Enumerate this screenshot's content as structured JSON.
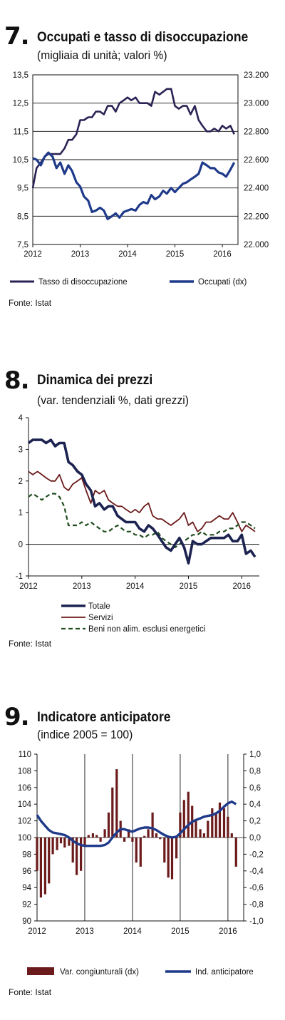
{
  "colors": {
    "navy": "#1f2f6e",
    "dark_navy": "#1c2350",
    "brown": "#6b1b1b",
    "dark_green": "#1f4d1f"
  },
  "panel7": {
    "number": "7.",
    "title": "Occupati e tasso di disoccupazione",
    "subtitle": "(migliaia di unità; valori %)",
    "source": "Fonte: Istat"
  },
  "panel8": {
    "number": "8.",
    "title": "Dinamica dei prezzi",
    "subtitle": "(var. tendenziali %, dati grezzi)",
    "source": "Fonte: Istat"
  },
  "panel9": {
    "number": "9.",
    "title": "Indicatore anticipatore",
    "subtitle": "(indice 2005 = 100)",
    "source": "Fonte: Istat"
  },
  "chart_data": [
    {
      "type": "line",
      "x_ticks": [
        "2012",
        "2013",
        "2014",
        "2015",
        "2016"
      ],
      "x_range": [
        2012,
        2016.33
      ],
      "y_left": {
        "ticks": [
          "13,5",
          "12,5",
          "11,5",
          "10,5",
          "9,5",
          "8,5",
          "7,5"
        ],
        "range": [
          7.5,
          13.5
        ]
      },
      "y_right": {
        "ticks": [
          "23.200",
          "23.000",
          "22.800",
          "22.600",
          "22.400",
          "22.200",
          "22.000"
        ],
        "range": [
          22000,
          23200
        ]
      },
      "grid": true,
      "legend": "bottom",
      "series": [
        {
          "name": "Tasso di disoccupazione",
          "axis": "left",
          "color": "#2b2354",
          "t": [
            2012.0,
            2012.08,
            2012.17,
            2012.25,
            2012.33,
            2012.42,
            2012.5,
            2012.58,
            2012.67,
            2012.75,
            2012.83,
            2012.92,
            2013.0,
            2013.08,
            2013.17,
            2013.25,
            2013.33,
            2013.42,
            2013.5,
            2013.58,
            2013.67,
            2013.75,
            2013.83,
            2013.92,
            2014.0,
            2014.08,
            2014.17,
            2014.25,
            2014.33,
            2014.42,
            2014.5,
            2014.58,
            2014.67,
            2014.75,
            2014.83,
            2014.92,
            2015.0,
            2015.08,
            2015.17,
            2015.25,
            2015.33,
            2015.42,
            2015.5,
            2015.58,
            2015.67,
            2015.75,
            2015.83,
            2015.92,
            2016.0,
            2016.08,
            2016.17,
            2016.25
          ],
          "values": [
            9.5,
            10.2,
            10.4,
            10.6,
            10.7,
            10.7,
            10.7,
            10.7,
            10.9,
            11.2,
            11.2,
            11.4,
            11.9,
            11.9,
            12.0,
            12.0,
            12.2,
            12.2,
            12.1,
            12.4,
            12.4,
            12.2,
            12.5,
            12.6,
            12.7,
            12.6,
            12.7,
            12.5,
            12.5,
            12.5,
            12.4,
            12.9,
            12.8,
            12.9,
            13.0,
            13.0,
            12.4,
            12.3,
            12.4,
            12.4,
            12.1,
            12.4,
            11.9,
            11.7,
            11.5,
            11.5,
            11.6,
            11.5,
            11.7,
            11.6,
            11.7,
            11.4
          ]
        },
        {
          "name": "Occupati (dx)",
          "axis": "right",
          "color": "#1f3a8a",
          "t": [
            2012.0,
            2012.08,
            2012.17,
            2012.25,
            2012.33,
            2012.42,
            2012.5,
            2012.58,
            2012.67,
            2012.75,
            2012.83,
            2012.92,
            2013.0,
            2013.08,
            2013.17,
            2013.25,
            2013.33,
            2013.42,
            2013.5,
            2013.58,
            2013.67,
            2013.75,
            2013.83,
            2013.92,
            2014.0,
            2014.08,
            2014.17,
            2014.25,
            2014.33,
            2014.42,
            2014.5,
            2014.58,
            2014.67,
            2014.75,
            2014.83,
            2014.92,
            2015.0,
            2015.08,
            2015.17,
            2015.25,
            2015.33,
            2015.42,
            2015.5,
            2015.58,
            2015.67,
            2015.75,
            2015.83,
            2015.92,
            2016.0,
            2016.08,
            2016.17,
            2016.25
          ],
          "values": [
            22610,
            22600,
            22560,
            22620,
            22650,
            22620,
            22540,
            22580,
            22500,
            22560,
            22520,
            22440,
            22410,
            22340,
            22310,
            22230,
            22240,
            22260,
            22240,
            22180,
            22200,
            22220,
            22190,
            22230,
            22240,
            22250,
            22240,
            22280,
            22300,
            22290,
            22350,
            22320,
            22340,
            22380,
            22360,
            22400,
            22370,
            22400,
            22430,
            22440,
            22460,
            22480,
            22500,
            22580,
            22560,
            22540,
            22540,
            22510,
            22500,
            22480,
            22530,
            22580
          ]
        }
      ]
    },
    {
      "type": "line",
      "x_ticks": [
        "2012",
        "2013",
        "2014",
        "2015",
        "2016"
      ],
      "x_range": [
        2012,
        2016.33
      ],
      "y_left": {
        "ticks": [
          "4",
          "3",
          "2",
          "1",
          "0",
          "-1"
        ],
        "range": [
          -1,
          4
        ]
      },
      "grid": false,
      "legend": "bottom",
      "series": [
        {
          "name": "Totale",
          "color": "#1c2350",
          "style": "solid-thick",
          "t": [
            2012.0,
            2012.08,
            2012.17,
            2012.25,
            2012.33,
            2012.42,
            2012.5,
            2012.58,
            2012.67,
            2012.75,
            2012.83,
            2012.92,
            2013.0,
            2013.08,
            2013.17,
            2013.25,
            2013.33,
            2013.42,
            2013.5,
            2013.58,
            2013.67,
            2013.75,
            2013.83,
            2013.92,
            2014.0,
            2014.08,
            2014.17,
            2014.25,
            2014.33,
            2014.42,
            2014.5,
            2014.58,
            2014.67,
            2014.75,
            2014.83,
            2014.92,
            2015.0,
            2015.08,
            2015.17,
            2015.25,
            2015.33,
            2015.42,
            2015.5,
            2015.58,
            2015.67,
            2015.75,
            2015.83,
            2015.92,
            2016.0,
            2016.08,
            2016.17,
            2016.25
          ],
          "values": [
            3.2,
            3.3,
            3.3,
            3.3,
            3.2,
            3.3,
            3.1,
            3.2,
            3.2,
            2.6,
            2.5,
            2.3,
            2.2,
            1.9,
            1.7,
            1.2,
            1.3,
            1.1,
            1.2,
            1.2,
            0.9,
            0.8,
            0.7,
            0.7,
            0.7,
            0.5,
            0.4,
            0.6,
            0.5,
            0.3,
            0.1,
            -0.1,
            -0.2,
            0.0,
            0.2,
            -0.1,
            -0.6,
            0.1,
            0.0,
            0.0,
            0.1,
            0.2,
            0.2,
            0.2,
            0.2,
            0.3,
            0.1,
            0.1,
            0.3,
            -0.3,
            -0.2,
            -0.4
          ]
        },
        {
          "name": "Servizi",
          "color": "#6b1b1b",
          "style": "solid",
          "t": [
            2012.0,
            2012.08,
            2012.17,
            2012.25,
            2012.33,
            2012.42,
            2012.5,
            2012.58,
            2012.67,
            2012.75,
            2012.83,
            2012.92,
            2013.0,
            2013.08,
            2013.17,
            2013.25,
            2013.33,
            2013.42,
            2013.5,
            2013.58,
            2013.67,
            2013.75,
            2013.83,
            2013.92,
            2014.0,
            2014.08,
            2014.17,
            2014.25,
            2014.33,
            2014.42,
            2014.5,
            2014.58,
            2014.67,
            2014.75,
            2014.83,
            2014.92,
            2015.0,
            2015.08,
            2015.17,
            2015.25,
            2015.33,
            2015.42,
            2015.5,
            2015.58,
            2015.67,
            2015.75,
            2015.83,
            2015.92,
            2016.0,
            2016.08,
            2016.17,
            2016.25
          ],
          "values": [
            2.3,
            2.2,
            2.3,
            2.2,
            2.1,
            2.0,
            2.0,
            2.2,
            1.8,
            1.7,
            1.9,
            2.0,
            2.1,
            1.7,
            1.3,
            1.7,
            1.6,
            1.7,
            1.4,
            1.3,
            1.2,
            1.2,
            1.1,
            1.0,
            1.1,
            1.0,
            1.2,
            1.3,
            0.9,
            0.8,
            0.8,
            0.7,
            0.6,
            0.7,
            0.8,
            1.0,
            0.6,
            0.7,
            0.4,
            0.5,
            0.7,
            0.7,
            0.8,
            0.9,
            0.8,
            0.8,
            1.0,
            0.7,
            0.4,
            0.6,
            0.5,
            0.4
          ]
        },
        {
          "name": "Beni non alim. esclusi energetici",
          "color": "#1f4d1f",
          "style": "dashed",
          "t": [
            2012.0,
            2012.08,
            2012.17,
            2012.25,
            2012.33,
            2012.42,
            2012.5,
            2012.58,
            2012.67,
            2012.75,
            2012.83,
            2012.92,
            2013.0,
            2013.08,
            2013.17,
            2013.25,
            2013.33,
            2013.42,
            2013.5,
            2013.58,
            2013.67,
            2013.75,
            2013.83,
            2013.92,
            2014.0,
            2014.08,
            2014.17,
            2014.25,
            2014.33,
            2014.42,
            2014.5,
            2014.58,
            2014.67,
            2014.75,
            2014.83,
            2014.92,
            2015.0,
            2015.08,
            2015.17,
            2015.25,
            2015.33,
            2015.42,
            2015.5,
            2015.58,
            2015.67,
            2015.75,
            2015.83,
            2015.92,
            2016.0,
            2016.08,
            2016.17,
            2016.25
          ],
          "values": [
            1.5,
            1.6,
            1.5,
            1.4,
            1.5,
            1.6,
            1.6,
            1.5,
            1.2,
            0.6,
            0.6,
            0.6,
            0.7,
            0.6,
            0.7,
            0.6,
            0.5,
            0.4,
            0.4,
            0.5,
            0.6,
            0.5,
            0.4,
            0.4,
            0.3,
            0.3,
            0.2,
            0.3,
            0.3,
            0.4,
            0.2,
            0.1,
            0.0,
            -0.1,
            0.0,
            0.1,
            0.2,
            0.3,
            0.3,
            0.4,
            0.3,
            0.3,
            0.3,
            0.4,
            0.4,
            0.5,
            0.5,
            0.6,
            0.7,
            0.7,
            0.6,
            0.5
          ]
        }
      ]
    },
    {
      "type": "bar",
      "x_ticks": [
        "2012",
        "2013",
        "2014",
        "2015",
        "2016"
      ],
      "x_range": [
        2012,
        2016.33
      ],
      "y_left": {
        "ticks": [
          "110",
          "108",
          "106",
          "104",
          "102",
          "100",
          "98",
          "96",
          "94",
          "92",
          "90"
        ],
        "range": [
          90,
          110
        ]
      },
      "y_right": {
        "ticks": [
          "1,0",
          "0,8",
          "0,6",
          "0,4",
          "0,2",
          "0,0",
          "-0,2",
          "-0,4",
          "-0,6",
          "-0,8",
          "-1,0"
        ],
        "range": [
          -1,
          1
        ]
      },
      "grid": false,
      "legend": "bottom",
      "series": [
        {
          "name": "Var. congiunturali (dx)",
          "type": "bar",
          "axis": "right",
          "color": "#6b1b1b",
          "t": [
            2012.0,
            2012.08,
            2012.17,
            2012.25,
            2012.33,
            2012.42,
            2012.5,
            2012.58,
            2012.67,
            2012.75,
            2012.83,
            2012.92,
            2013.0,
            2013.08,
            2013.17,
            2013.25,
            2013.33,
            2013.42,
            2013.5,
            2013.58,
            2013.67,
            2013.75,
            2013.83,
            2013.92,
            2014.0,
            2014.08,
            2014.17,
            2014.25,
            2014.33,
            2014.42,
            2014.5,
            2014.58,
            2014.67,
            2014.75,
            2014.83,
            2014.92,
            2015.0,
            2015.08,
            2015.17,
            2015.25,
            2015.33,
            2015.42,
            2015.5,
            2015.58,
            2015.67,
            2015.75,
            2015.83,
            2015.92,
            2016.0,
            2016.08,
            2016.17
          ],
          "values": [
            -0.4,
            -0.72,
            -0.68,
            -0.55,
            -0.2,
            -0.15,
            -0.07,
            -0.12,
            -0.1,
            -0.3,
            -0.45,
            -0.4,
            -0.1,
            0.03,
            0.05,
            0.03,
            -0.05,
            0.1,
            0.3,
            0.6,
            0.82,
            0.2,
            -0.05,
            0.1,
            -0.05,
            -0.3,
            -0.35,
            0.02,
            0.1,
            0.3,
            0.05,
            -0.02,
            -0.3,
            -0.48,
            -0.5,
            -0.25,
            0.3,
            0.45,
            0.55,
            0.38,
            0.22,
            0.1,
            0.05,
            0.2,
            0.35,
            0.3,
            0.42,
            0.35,
            0.25,
            0.05,
            -0.35
          ]
        },
        {
          "name": "Ind. anticipatore",
          "type": "line",
          "axis": "left",
          "color": "#1f3a8a",
          "t": [
            2012.0,
            2012.08,
            2012.17,
            2012.25,
            2012.33,
            2012.42,
            2012.5,
            2012.58,
            2012.67,
            2012.75,
            2012.83,
            2012.92,
            2013.0,
            2013.08,
            2013.17,
            2013.25,
            2013.33,
            2013.42,
            2013.5,
            2013.58,
            2013.67,
            2013.75,
            2013.83,
            2013.92,
            2014.0,
            2014.08,
            2014.17,
            2014.25,
            2014.33,
            2014.42,
            2014.5,
            2014.58,
            2014.67,
            2014.75,
            2014.83,
            2014.92,
            2015.0,
            2015.08,
            2015.17,
            2015.25,
            2015.33,
            2015.42,
            2015.5,
            2015.58,
            2015.67,
            2015.75,
            2015.83,
            2015.92,
            2016.0,
            2016.08,
            2016.17
          ],
          "values": [
            102.7,
            102.0,
            101.4,
            100.9,
            100.6,
            100.5,
            100.4,
            100.3,
            100.0,
            99.6,
            99.3,
            99.1,
            99.0,
            99.0,
            99.0,
            99.0,
            99.0,
            99.1,
            99.4,
            100.0,
            100.6,
            101.0,
            101.0,
            100.8,
            100.7,
            100.9,
            101.1,
            101.2,
            101.2,
            101.1,
            100.9,
            100.6,
            100.3,
            100.1,
            100.0,
            100.1,
            100.5,
            101.0,
            101.5,
            101.9,
            102.1,
            102.3,
            102.5,
            102.6,
            102.7,
            102.9,
            103.2,
            103.7,
            104.1,
            104.3,
            104.0
          ]
        }
      ]
    }
  ]
}
